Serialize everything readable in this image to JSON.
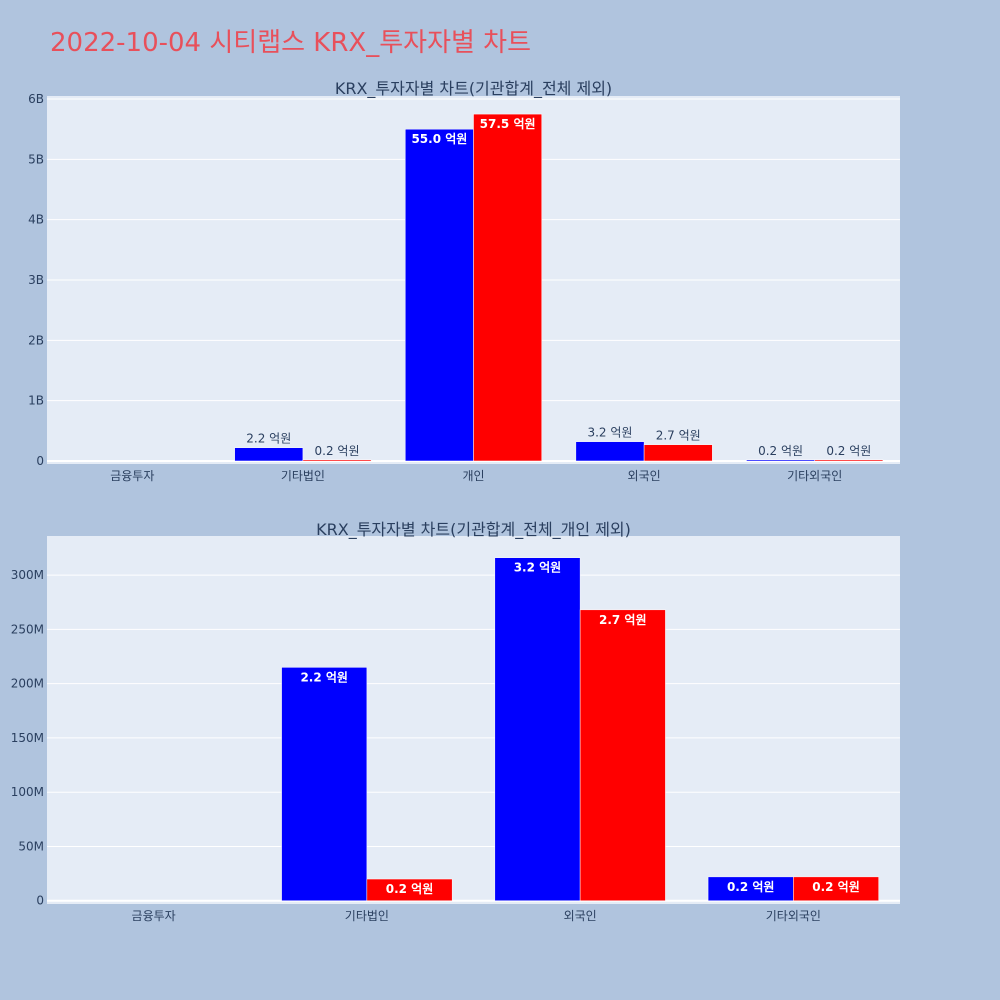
{
  "title": "2022-10-04 시티랩스 KRX_투자자별 차트",
  "colors": {
    "buy": "#0000ff",
    "sell": "#ff0000",
    "title": "#e8505b",
    "plot_bg": "#e5ecf6",
    "page_bg": "#b0c4de"
  },
  "chart_data": [
    {
      "type": "bar",
      "title": "KRX_투자자별 차트(기관합계_전체 제외)",
      "categories": [
        "금융투자",
        "기타법인",
        "개인",
        "외국인",
        "기타외국인"
      ],
      "series": [
        {
          "values": [
            0,
            220000000,
            5500000000,
            320000000,
            20000000
          ],
          "labels": [
            "",
            "2.2 억원",
            "55.0 억원",
            "3.2 억원",
            "0.2 억원"
          ]
        },
        {
          "values": [
            0,
            20000000,
            5750000000,
            270000000,
            20000000
          ],
          "labels": [
            "",
            "0.2 억원",
            "57.5 억원",
            "2.7 억원",
            "0.2 억원"
          ]
        }
      ],
      "ylim": [
        -50000000,
        6050000000
      ],
      "yticks": [
        0,
        1000000000,
        2000000000,
        3000000000,
        4000000000,
        5000000000,
        6000000000
      ],
      "ytick_labels": [
        "0",
        "1B",
        "2B",
        "3B",
        "4B",
        "5B",
        "6B"
      ],
      "grid": true,
      "legend": "none"
    },
    {
      "type": "bar",
      "title": "KRX_투자자별 차트(기관합계_전체_개인 제외)",
      "categories": [
        "금융투자",
        "기타법인",
        "외국인",
        "기타외국인"
      ],
      "series": [
        {
          "values": [
            0,
            215000000,
            316000000,
            22000000
          ],
          "labels": [
            "",
            "2.2 억원",
            "3.2 억원",
            "0.2 억원"
          ]
        },
        {
          "values": [
            0,
            20000000,
            268000000,
            22000000
          ],
          "labels": [
            "",
            "0.2 억원",
            "2.7 억원",
            "0.2 억원"
          ]
        }
      ],
      "ylim": [
        -3000000,
        336000000
      ],
      "yticks": [
        0,
        50000000,
        100000000,
        150000000,
        200000000,
        250000000,
        300000000
      ],
      "ytick_labels": [
        "0",
        "50M",
        "100M",
        "150M",
        "200M",
        "250M",
        "300M"
      ],
      "grid": true,
      "legend": "none"
    }
  ]
}
